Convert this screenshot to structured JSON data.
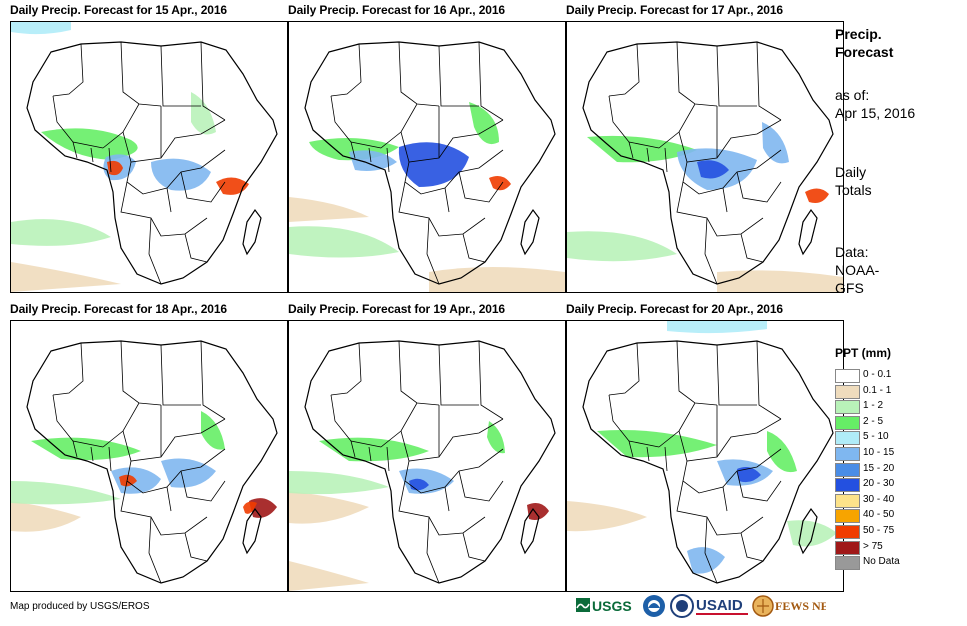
{
  "panels": [
    {
      "title": "Daily Precip. Forecast for 15 Apr., 2016"
    },
    {
      "title": "Daily Precip. Forecast for 16 Apr., 2016"
    },
    {
      "title": "Daily Precip. Forecast for 17 Apr., 2016"
    },
    {
      "title": "Daily Precip. Forecast for 18 Apr., 2016"
    },
    {
      "title": "Daily Precip. Forecast for 19 Apr., 2016"
    },
    {
      "title": "Daily Precip. Forecast for 20 Apr., 2016"
    }
  ],
  "side": {
    "title_line1": "Precip.",
    "title_line2": "Forecast",
    "asof_line1": "as of:",
    "asof_line2": "Apr 15, 2016",
    "totals_line1": "Daily",
    "totals_line2": "Totals",
    "data_line1": "Data:",
    "data_line2": "NOAA-",
    "data_line3": "GFS"
  },
  "legend": {
    "title": "PPT (mm)",
    "items": [
      {
        "label": "0 - 0.1",
        "color": "#ffffff"
      },
      {
        "label": "0.1 - 1",
        "color": "#efdcbd"
      },
      {
        "label": "1 - 2",
        "color": "#b9f2b9"
      },
      {
        "label": "2 - 5",
        "color": "#66ee66"
      },
      {
        "label": "5 - 10",
        "color": "#b0ecf8"
      },
      {
        "label": "10 - 15",
        "color": "#7fb7f0"
      },
      {
        "label": "15 - 20",
        "color": "#4a8de6"
      },
      {
        "label": "20 - 30",
        "color": "#2350e0"
      },
      {
        "label": "30 - 40",
        "color": "#fde38a"
      },
      {
        "label": "40 - 50",
        "color": "#f7a400"
      },
      {
        "label": "50 - 75",
        "color": "#f03c00"
      },
      {
        "label": "> 75",
        "color": "#a01818"
      },
      {
        "label": "No Data",
        "color": "#999999"
      }
    ]
  },
  "footer": {
    "credit": "Map produced by USGS/EROS",
    "logo_usgs": "USGS",
    "logo_usaid": "USAID",
    "logo_fews": "FEWS NET"
  }
}
